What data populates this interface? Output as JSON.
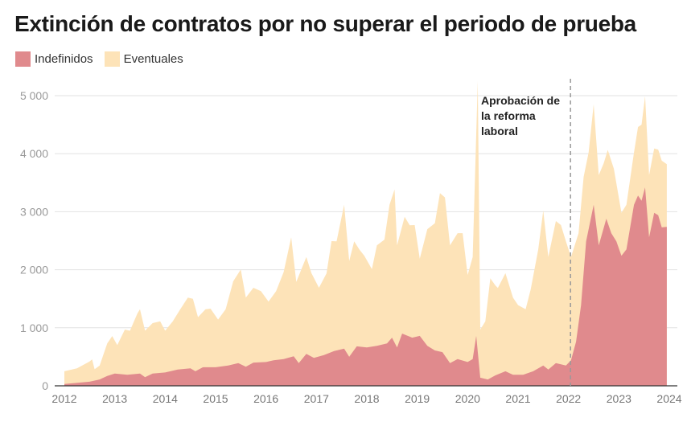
{
  "chart_data": {
    "type": "area",
    "stacked": true,
    "title": "Extinción de contratos por no superar el periodo de prueba",
    "xlim": [
      2012,
      2024
    ],
    "ylim": [
      0,
      5000
    ],
    "x_ticks": [
      "2012",
      "2013",
      "2014",
      "2015",
      "2016",
      "2017",
      "2018",
      "2019",
      "2020",
      "2021",
      "2022",
      "2023",
      "2024"
    ],
    "y_ticks": [
      "0",
      "1 000",
      "2 000",
      "3 000",
      "4 000",
      "5 000"
    ],
    "grid": true,
    "legend_placement": "top-left",
    "annotation": {
      "x": 2022.04,
      "lines": [
        "Aprobación de",
        "la reforma",
        "laboral"
      ]
    },
    "series": [
      {
        "name": "Indefinidos",
        "color": "#e08a8d",
        "points": [
          [
            2012.0,
            30
          ],
          [
            2012.5,
            70
          ],
          [
            2012.7,
            110
          ],
          [
            2012.85,
            170
          ],
          [
            2013.0,
            210
          ],
          [
            2013.25,
            190
          ],
          [
            2013.5,
            210
          ],
          [
            2013.6,
            150
          ],
          [
            2013.75,
            210
          ],
          [
            2014.0,
            230
          ],
          [
            2014.25,
            280
          ],
          [
            2014.5,
            300
          ],
          [
            2014.6,
            250
          ],
          [
            2014.75,
            320
          ],
          [
            2015.0,
            320
          ],
          [
            2015.25,
            350
          ],
          [
            2015.45,
            390
          ],
          [
            2015.6,
            330
          ],
          [
            2015.75,
            400
          ],
          [
            2016.0,
            410
          ],
          [
            2016.15,
            440
          ],
          [
            2016.35,
            460
          ],
          [
            2016.55,
            510
          ],
          [
            2016.65,
            390
          ],
          [
            2016.8,
            550
          ],
          [
            2016.95,
            480
          ],
          [
            2017.15,
            530
          ],
          [
            2017.35,
            600
          ],
          [
            2017.55,
            640
          ],
          [
            2017.65,
            500
          ],
          [
            2017.8,
            680
          ],
          [
            2018.0,
            660
          ],
          [
            2018.2,
            690
          ],
          [
            2018.4,
            730
          ],
          [
            2018.5,
            830
          ],
          [
            2018.6,
            660
          ],
          [
            2018.7,
            900
          ],
          [
            2018.9,
            830
          ],
          [
            2019.05,
            860
          ],
          [
            2019.2,
            690
          ],
          [
            2019.35,
            610
          ],
          [
            2019.5,
            580
          ],
          [
            2019.65,
            390
          ],
          [
            2019.8,
            460
          ],
          [
            2020.0,
            410
          ],
          [
            2020.1,
            460
          ],
          [
            2020.17,
            860
          ],
          [
            2020.25,
            140
          ],
          [
            2020.4,
            110
          ],
          [
            2020.55,
            180
          ],
          [
            2020.75,
            250
          ],
          [
            2020.9,
            190
          ],
          [
            2021.1,
            190
          ],
          [
            2021.3,
            250
          ],
          [
            2021.5,
            350
          ],
          [
            2021.6,
            280
          ],
          [
            2021.75,
            390
          ],
          [
            2021.95,
            350
          ],
          [
            2022.05,
            440
          ],
          [
            2022.15,
            760
          ],
          [
            2022.25,
            1390
          ],
          [
            2022.35,
            2490
          ],
          [
            2022.5,
            3120
          ],
          [
            2022.6,
            2420
          ],
          [
            2022.75,
            2880
          ],
          [
            2022.85,
            2630
          ],
          [
            2022.95,
            2490
          ],
          [
            2023.05,
            2240
          ],
          [
            2023.15,
            2350
          ],
          [
            2023.3,
            3120
          ],
          [
            2023.38,
            3280
          ],
          [
            2023.45,
            3190
          ],
          [
            2023.52,
            3420
          ],
          [
            2023.6,
            2560
          ],
          [
            2023.7,
            2980
          ],
          [
            2023.78,
            2940
          ],
          [
            2023.85,
            2730
          ],
          [
            2023.95,
            2740
          ]
        ]
      },
      {
        "name": "Eventuales",
        "color": "#fde3b8",
        "points": [
          [
            2012.0,
            220
          ],
          [
            2012.25,
            250
          ],
          [
            2012.5,
            350
          ],
          [
            2012.55,
            375
          ],
          [
            2012.6,
            195
          ],
          [
            2012.7,
            240
          ],
          [
            2012.85,
            560
          ],
          [
            2012.95,
            660
          ],
          [
            2013.05,
            495
          ],
          [
            2013.2,
            775
          ],
          [
            2013.3,
            755
          ],
          [
            2013.45,
            1045
          ],
          [
            2013.5,
            1110
          ],
          [
            2013.6,
            800
          ],
          [
            2013.75,
            870
          ],
          [
            2013.9,
            890
          ],
          [
            2014.0,
            720
          ],
          [
            2014.15,
            850
          ],
          [
            2014.3,
            1035
          ],
          [
            2014.45,
            1225
          ],
          [
            2014.55,
            1225
          ],
          [
            2014.65,
            910
          ],
          [
            2014.8,
            1000
          ],
          [
            2014.9,
            1010
          ],
          [
            2015.05,
            815
          ],
          [
            2015.2,
            975
          ],
          [
            2015.35,
            1430
          ],
          [
            2015.5,
            1635
          ],
          [
            2015.6,
            1190
          ],
          [
            2015.75,
            1290
          ],
          [
            2015.9,
            1225
          ],
          [
            2016.05,
            1030
          ],
          [
            2016.2,
            1185
          ],
          [
            2016.35,
            1500
          ],
          [
            2016.5,
            2060
          ],
          [
            2016.6,
            1340
          ],
          [
            2016.8,
            1670
          ],
          [
            2016.9,
            1440
          ],
          [
            2017.05,
            1185
          ],
          [
            2017.2,
            1390
          ],
          [
            2017.3,
            1910
          ],
          [
            2017.4,
            1880
          ],
          [
            2017.55,
            2480
          ],
          [
            2017.65,
            1650
          ],
          [
            2017.75,
            1870
          ],
          [
            2017.85,
            1675
          ],
          [
            2017.95,
            1575
          ],
          [
            2018.1,
            1335
          ],
          [
            2018.2,
            1730
          ],
          [
            2018.35,
            1800
          ],
          [
            2018.45,
            2340
          ],
          [
            2018.55,
            2640
          ],
          [
            2018.6,
            1760
          ],
          [
            2018.75,
            2030
          ],
          [
            2018.85,
            1920
          ],
          [
            2018.95,
            1930
          ],
          [
            2019.05,
            1330
          ],
          [
            2019.2,
            2010
          ],
          [
            2019.35,
            2190
          ],
          [
            2019.45,
            2730
          ],
          [
            2019.55,
            2730
          ],
          [
            2019.65,
            2030
          ],
          [
            2019.8,
            2170
          ],
          [
            2019.9,
            2195
          ],
          [
            2020.0,
            1500
          ],
          [
            2020.1,
            1760
          ],
          [
            2020.2,
            4660
          ],
          [
            2020.25,
            830
          ],
          [
            2020.35,
            990
          ],
          [
            2020.45,
            1720
          ],
          [
            2020.55,
            1550
          ],
          [
            2020.6,
            1490
          ],
          [
            2020.75,
            1690
          ],
          [
            2020.9,
            1330
          ],
          [
            2021.0,
            1200
          ],
          [
            2021.15,
            1115
          ],
          [
            2021.25,
            1425
          ],
          [
            2021.4,
            2050
          ],
          [
            2021.5,
            2670
          ],
          [
            2021.6,
            1940
          ],
          [
            2021.75,
            2450
          ],
          [
            2021.85,
            2400
          ],
          [
            2021.95,
            2140
          ],
          [
            2022.05,
            1780
          ],
          [
            2022.2,
            1555
          ],
          [
            2022.3,
            1660
          ],
          [
            2022.4,
            1320
          ],
          [
            2022.5,
            1730
          ],
          [
            2022.6,
            1210
          ],
          [
            2022.7,
            1110
          ],
          [
            2022.78,
            1260
          ],
          [
            2022.9,
            1180
          ],
          [
            2023.05,
            740
          ],
          [
            2023.15,
            770
          ],
          [
            2023.3,
            900
          ],
          [
            2023.38,
            1180
          ],
          [
            2023.45,
            1310
          ],
          [
            2023.52,
            1570
          ],
          [
            2023.6,
            1070
          ],
          [
            2023.7,
            1110
          ],
          [
            2023.78,
            1130
          ],
          [
            2023.85,
            1150
          ],
          [
            2023.95,
            1080
          ]
        ]
      }
    ]
  }
}
